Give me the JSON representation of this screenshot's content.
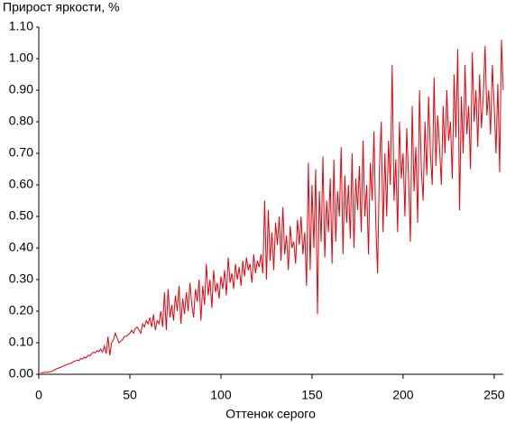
{
  "chart_data": {
    "type": "line",
    "title": "Прирост яркости, %",
    "x_label": "Оттенок серого",
    "color": "#e8000b",
    "x": [
      1,
      2,
      3,
      4,
      5,
      6,
      7,
      8,
      9,
      10,
      11,
      12,
      13,
      14,
      15,
      16,
      17,
      18,
      19,
      20,
      21,
      22,
      23,
      24,
      25,
      26,
      27,
      28,
      29,
      30,
      31,
      32,
      33,
      34,
      35,
      36,
      37,
      38,
      39,
      40,
      41,
      42,
      43,
      44,
      45,
      46,
      47,
      48,
      49,
      50,
      51,
      52,
      53,
      54,
      55,
      56,
      57,
      58,
      59,
      60,
      61,
      62,
      63,
      64,
      65,
      66,
      67,
      68,
      69,
      70,
      71,
      72,
      73,
      74,
      75,
      76,
      77,
      78,
      79,
      80,
      81,
      82,
      83,
      84,
      85,
      86,
      87,
      88,
      89,
      90,
      91,
      92,
      93,
      94,
      95,
      96,
      97,
      98,
      99,
      100,
      101,
      102,
      103,
      104,
      105,
      106,
      107,
      108,
      109,
      110,
      111,
      112,
      113,
      114,
      115,
      116,
      117,
      118,
      119,
      120,
      121,
      122,
      123,
      124,
      125,
      126,
      127,
      128,
      129,
      130,
      131,
      132,
      133,
      134,
      135,
      136,
      137,
      138,
      139,
      140,
      141,
      142,
      143,
      144,
      145,
      146,
      147,
      148,
      149,
      150,
      151,
      152,
      153,
      154,
      155,
      156,
      157,
      158,
      159,
      160,
      161,
      162,
      163,
      164,
      165,
      166,
      167,
      168,
      169,
      170,
      171,
      172,
      173,
      174,
      175,
      176,
      177,
      178,
      179,
      180,
      181,
      182,
      183,
      184,
      185,
      186,
      187,
      188,
      189,
      190,
      191,
      192,
      193,
      194,
      195,
      196,
      197,
      198,
      199,
      200,
      201,
      202,
      203,
      204,
      205,
      206,
      207,
      208,
      209,
      210,
      211,
      212,
      213,
      214,
      215,
      216,
      217,
      218,
      219,
      220,
      221,
      222,
      223,
      224,
      225,
      226,
      227,
      228,
      229,
      230,
      231,
      232,
      233,
      234,
      235,
      236,
      237,
      238,
      239,
      240,
      241,
      242,
      243,
      244,
      245,
      246,
      247,
      248,
      249,
      250,
      251,
      252,
      253,
      254,
      255
    ],
    "values": [
      0.005,
      0.005,
      0.006,
      0.006,
      0.007,
      0.008,
      0.009,
      0.012,
      0.015,
      0.018,
      0.02,
      0.022,
      0.025,
      0.027,
      0.03,
      0.032,
      0.034,
      0.036,
      0.04,
      0.042,
      0.045,
      0.043,
      0.05,
      0.048,
      0.055,
      0.052,
      0.06,
      0.058,
      0.065,
      0.07,
      0.068,
      0.075,
      0.072,
      0.08,
      0.07,
      0.09,
      0.065,
      0.12,
      0.06,
      0.1,
      0.11,
      0.13,
      0.115,
      0.1,
      0.105,
      0.11,
      0.12,
      0.12,
      0.125,
      0.13,
      0.14,
      0.13,
      0.145,
      0.15,
      0.14,
      0.13,
      0.16,
      0.15,
      0.17,
      0.16,
      0.18,
      0.15,
      0.19,
      0.14,
      0.17,
      0.16,
      0.2,
      0.15,
      0.26,
      0.14,
      0.27,
      0.18,
      0.22,
      0.17,
      0.25,
      0.2,
      0.28,
      0.16,
      0.24,
      0.19,
      0.26,
      0.2,
      0.29,
      0.22,
      0.18,
      0.27,
      0.23,
      0.3,
      0.17,
      0.28,
      0.22,
      0.35,
      0.25,
      0.3,
      0.21,
      0.33,
      0.26,
      0.29,
      0.24,
      0.31,
      0.27,
      0.33,
      0.25,
      0.37,
      0.29,
      0.32,
      0.27,
      0.35,
      0.3,
      0.34,
      0.28,
      0.36,
      0.31,
      0.37,
      0.33,
      0.35,
      0.29,
      0.38,
      0.32,
      0.36,
      0.34,
      0.38,
      0.32,
      0.55,
      0.3,
      0.52,
      0.36,
      0.45,
      0.33,
      0.48,
      0.41,
      0.5,
      0.36,
      0.53,
      0.38,
      0.44,
      0.33,
      0.47,
      0.4,
      0.42,
      0.35,
      0.49,
      0.41,
      0.5,
      0.38,
      0.45,
      0.28,
      0.67,
      0.33,
      0.6,
      0.4,
      0.65,
      0.19,
      0.58,
      0.42,
      0.69,
      0.37,
      0.55,
      0.45,
      0.62,
      0.35,
      0.68,
      0.42,
      0.58,
      0.5,
      0.72,
      0.38,
      0.63,
      0.48,
      0.6,
      0.43,
      0.7,
      0.4,
      0.62,
      0.52,
      0.66,
      0.45,
      0.74,
      0.5,
      0.6,
      0.38,
      0.67,
      0.55,
      0.77,
      0.48,
      0.32,
      0.65,
      0.8,
      0.45,
      0.7,
      0.5,
      0.74,
      0.6,
      0.98,
      0.55,
      0.68,
      0.45,
      0.8,
      0.62,
      0.7,
      0.5,
      0.78,
      0.62,
      0.42,
      0.85,
      0.58,
      0.72,
      0.48,
      0.9,
      0.65,
      0.55,
      0.8,
      0.63,
      0.88,
      0.7,
      0.6,
      0.94,
      0.66,
      0.82,
      0.72,
      0.6,
      0.85,
      0.7,
      0.9,
      0.74,
      0.8,
      0.62,
      0.95,
      0.75,
      1.03,
      0.52,
      0.88,
      0.7,
      0.98,
      0.76,
      0.85,
      0.65,
      1.02,
      0.8,
      0.9,
      0.72,
      0.95,
      0.78,
      0.88,
      1.04,
      0.82,
      0.9,
      0.76,
      0.98,
      0.85,
      0.7,
      0.92,
      0.64,
      1.06,
      0.9
    ],
    "xlim": [
      0,
      255
    ],
    "xticks": [
      0,
      50,
      100,
      150,
      200,
      250
    ],
    "ylim": [
      0,
      1.1
    ],
    "yticks": [
      {
        "value": 0,
        "label": "0.00"
      },
      {
        "value": 0.1,
        "label": "0.10"
      },
      {
        "value": 0.2,
        "label": "0.20"
      },
      {
        "value": 0.3,
        "label": "0.30"
      },
      {
        "value": 0.4,
        "label": "0.40"
      },
      {
        "value": 0.5,
        "label": "0.50"
      },
      {
        "value": 0.6,
        "label": "0.60"
      },
      {
        "value": 0.7,
        "label": "0.70"
      },
      {
        "value": 0.8,
        "label": "0.80"
      },
      {
        "value": 0.9,
        "label": "0.90"
      },
      {
        "value": 1.0,
        "label": "1.00"
      },
      {
        "value": 1.1,
        "label": "1.10"
      }
    ]
  }
}
